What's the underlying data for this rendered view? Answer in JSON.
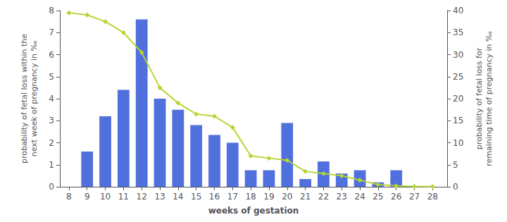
{
  "chart_data": {
    "type": "bar",
    "x": [
      8,
      9,
      10,
      11,
      12,
      13,
      14,
      15,
      16,
      17,
      18,
      19,
      20,
      21,
      22,
      23,
      24,
      25,
      26,
      27,
      28
    ],
    "xlabel": "weeks of gestation",
    "ylabel": "probability of fetal loss within the\nnext week of pregnancy in ‰",
    "y2label": "probability of fetal loss for\nremaining time of pregnancy in ‰",
    "xlim": [
      7.5,
      28.8
    ],
    "xticks": [
      8,
      9,
      10,
      11,
      12,
      13,
      14,
      15,
      16,
      17,
      18,
      19,
      20,
      21,
      22,
      23,
      24,
      25,
      26,
      27,
      28
    ],
    "ylim": [
      0,
      8
    ],
    "yticks": [
      0,
      1,
      2,
      3,
      4,
      5,
      6,
      7,
      8
    ],
    "y2lim": [
      0,
      40
    ],
    "y2ticks": [
      0,
      5,
      10,
      15,
      20,
      25,
      30,
      35,
      40
    ],
    "grid": false,
    "series": [
      {
        "type": "bar",
        "values": [
          0.0,
          1.6,
          3.2,
          4.4,
          7.6,
          4.0,
          3.5,
          2.8,
          2.35,
          2.0,
          0.75,
          0.75,
          2.9,
          0.35,
          1.15,
          0.6,
          0.75,
          0.2,
          0.75,
          0.0,
          0.0
        ]
      },
      {
        "type": "line",
        "axis": "y2",
        "marker": "diamond",
        "values": [
          39.5,
          39.0,
          37.5,
          35.0,
          30.5,
          22.5,
          19.0,
          16.5,
          16.0,
          13.5,
          7.0,
          6.5,
          6.0,
          3.5,
          3.0,
          2.5,
          1.5,
          0.5,
          0.2,
          0.1,
          0.05
        ]
      }
    ]
  }
}
